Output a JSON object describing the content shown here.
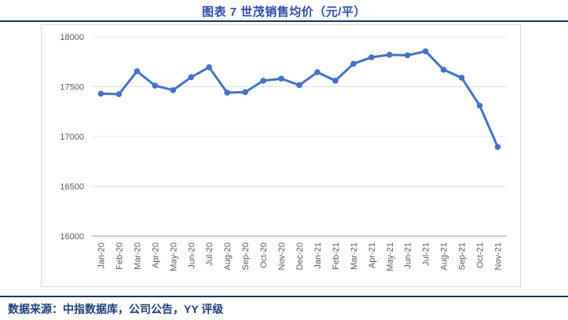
{
  "header": {
    "title": "图表 7  世茂销售均价（元/平）"
  },
  "footer": {
    "source_note": "数据来源：中指数据库，公司公告，YY 评级"
  },
  "colors": {
    "series_line": "#4472C4",
    "title_text": "#2E4BA6",
    "rule": "#17365D",
    "footer_text": "#1F3E78",
    "axis_text": "#595959",
    "gridline": "#E3E3E3",
    "axis_line": "#BFBFBF",
    "chart_border": "#D9D9D9",
    "background": "#FFFFFF"
  },
  "chart_data": {
    "type": "line",
    "title": "图表 7  世茂销售均价（元/平）",
    "xlabel": "",
    "ylabel": "",
    "categories": [
      "Jan-20",
      "Feb-20",
      "Mar-20",
      "Apr-20",
      "May-20",
      "Jun-20",
      "Jul-20",
      "Aug-20",
      "Sep-20",
      "Oct-20",
      "Nov-20",
      "Dec-20",
      "Jan-21",
      "Feb-21",
      "Mar-21",
      "Apr-21",
      "May-21",
      "Jun-21",
      "Jul-21",
      "Aug-21",
      "Sep-21",
      "Oct-21",
      "Nov-21"
    ],
    "values": [
      17430,
      17425,
      17655,
      17510,
      17465,
      17595,
      17695,
      17440,
      17445,
      17560,
      17580,
      17515,
      17645,
      17560,
      17730,
      17795,
      17820,
      17815,
      17855,
      17670,
      17590,
      17310,
      16895
    ],
    "ylim": [
      16000,
      18000
    ],
    "ytick_step": 500,
    "ytick_labels": [
      "16000",
      "16500",
      "17000",
      "17500",
      "18000"
    ],
    "grid": true,
    "legend": "none",
    "marker": "circle",
    "series_name": "世茂销售均价"
  }
}
